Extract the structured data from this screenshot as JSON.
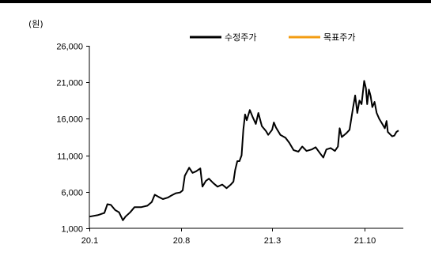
{
  "chart_data": {
    "type": "line",
    "unit_label": "(원)",
    "ylim": [
      1000,
      26000
    ],
    "y_ticks": [
      "1,000",
      "6,000",
      "11,000",
      "16,000",
      "21,000",
      "26,000"
    ],
    "y_tick_values": [
      1000,
      6000,
      11000,
      16000,
      21000,
      26000
    ],
    "x_range": [
      "2020-01-01",
      "2021-12-31"
    ],
    "x_ticks": [
      "20.1",
      "20.8",
      "21.3",
      "21.10"
    ],
    "x_tick_dates": [
      "2020-01-01",
      "2020-08-01",
      "2021-03-01",
      "2021-10-01"
    ],
    "grid": false,
    "legend_position": "top-right",
    "series": [
      {
        "name": "수정주가",
        "color": "#000000",
        "points": [
          [
            "2020-01-02",
            2600
          ],
          [
            "2020-01-20",
            2800
          ],
          [
            "2020-02-05",
            3100
          ],
          [
            "2020-02-12",
            4300
          ],
          [
            "2020-02-20",
            4200
          ],
          [
            "2020-03-01",
            3500
          ],
          [
            "2020-03-10",
            3200
          ],
          [
            "2020-03-19",
            2100
          ],
          [
            "2020-03-25",
            2600
          ],
          [
            "2020-04-05",
            3200
          ],
          [
            "2020-04-15",
            3900
          ],
          [
            "2020-05-01",
            3900
          ],
          [
            "2020-05-15",
            4100
          ],
          [
            "2020-05-25",
            4600
          ],
          [
            "2020-06-01",
            5600
          ],
          [
            "2020-06-10",
            5300
          ],
          [
            "2020-06-20",
            5000
          ],
          [
            "2020-07-01",
            5200
          ],
          [
            "2020-07-10",
            5500
          ],
          [
            "2020-07-20",
            5800
          ],
          [
            "2020-07-30",
            5900
          ],
          [
            "2020-08-05",
            6200
          ],
          [
            "2020-08-10",
            8200
          ],
          [
            "2020-08-20",
            9300
          ],
          [
            "2020-08-28",
            8600
          ],
          [
            "2020-09-05",
            8800
          ],
          [
            "2020-09-15",
            9200
          ],
          [
            "2020-09-20",
            6700
          ],
          [
            "2020-09-28",
            7500
          ],
          [
            "2020-10-05",
            7800
          ],
          [
            "2020-10-15",
            7200
          ],
          [
            "2020-10-25",
            6700
          ],
          [
            "2020-11-05",
            7000
          ],
          [
            "2020-11-15",
            6500
          ],
          [
            "2020-11-25",
            7000
          ],
          [
            "2020-12-01",
            7400
          ],
          [
            "2020-12-05",
            9000
          ],
          [
            "2020-12-10",
            10200
          ],
          [
            "2020-12-15",
            10200
          ],
          [
            "2020-12-20",
            11000
          ],
          [
            "2020-12-24",
            14500
          ],
          [
            "2020-12-28",
            16600
          ],
          [
            "2021-01-01",
            15800
          ],
          [
            "2021-01-08",
            17200
          ],
          [
            "2021-01-15",
            16200
          ],
          [
            "2021-01-22",
            15300
          ],
          [
            "2021-01-28",
            16800
          ],
          [
            "2021-02-05",
            15000
          ],
          [
            "2021-02-15",
            14300
          ],
          [
            "2021-02-20",
            13800
          ],
          [
            "2021-03-01",
            14500
          ],
          [
            "2021-03-05",
            15500
          ],
          [
            "2021-03-10",
            14800
          ],
          [
            "2021-03-20",
            13800
          ],
          [
            "2021-04-01",
            13400
          ],
          [
            "2021-04-10",
            12700
          ],
          [
            "2021-04-20",
            11700
          ],
          [
            "2021-05-01",
            11500
          ],
          [
            "2021-05-10",
            12200
          ],
          [
            "2021-05-20",
            11600
          ],
          [
            "2021-06-01",
            11800
          ],
          [
            "2021-06-10",
            12100
          ],
          [
            "2021-06-20",
            11300
          ],
          [
            "2021-06-28",
            10700
          ],
          [
            "2021-07-05",
            11800
          ],
          [
            "2021-07-15",
            12000
          ],
          [
            "2021-07-25",
            11600
          ],
          [
            "2021-08-01",
            12200
          ],
          [
            "2021-08-05",
            14700
          ],
          [
            "2021-08-10",
            13500
          ],
          [
            "2021-08-20",
            14000
          ],
          [
            "2021-08-28",
            14500
          ],
          [
            "2021-09-05",
            17500
          ],
          [
            "2021-09-10",
            19200
          ],
          [
            "2021-09-15",
            16800
          ],
          [
            "2021-09-20",
            18500
          ],
          [
            "2021-09-25",
            18000
          ],
          [
            "2021-10-01",
            21200
          ],
          [
            "2021-10-05",
            20200
          ],
          [
            "2021-10-08",
            18000
          ],
          [
            "2021-10-12",
            20000
          ],
          [
            "2021-10-16",
            19100
          ],
          [
            "2021-10-20",
            17600
          ],
          [
            "2021-10-25",
            18300
          ],
          [
            "2021-10-30",
            16800
          ],
          [
            "2021-11-05",
            16000
          ],
          [
            "2021-11-12",
            15300
          ],
          [
            "2021-11-18",
            14700
          ],
          [
            "2021-11-22",
            15700
          ],
          [
            "2021-11-25",
            14200
          ],
          [
            "2021-11-30",
            13900
          ],
          [
            "2021-12-05",
            13600
          ],
          [
            "2021-12-10",
            13700
          ],
          [
            "2021-12-15",
            14200
          ],
          [
            "2021-12-20",
            14400
          ]
        ]
      },
      {
        "name": "목표주가",
        "color": "#f39c12",
        "points": []
      }
    ]
  }
}
